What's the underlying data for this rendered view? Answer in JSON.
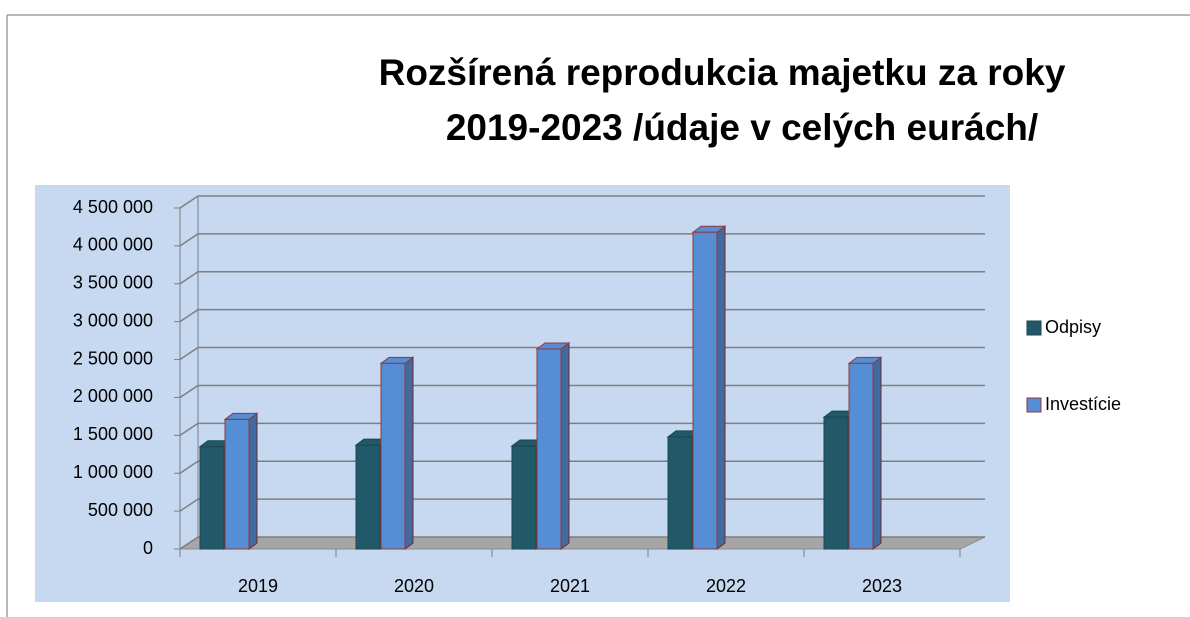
{
  "chart_data": {
    "type": "bar3d",
    "title": "Rozšírená reprodukcia  majetku za roky",
    "subtitle": "2019-2023 /údaje v celých eurách/",
    "categories": [
      "2019",
      "2020",
      "2021",
      "2022",
      "2023"
    ],
    "series": [
      {
        "name": "Odpisy",
        "color": "#215968",
        "values": [
          1350000,
          1370000,
          1360000,
          1480000,
          1740000
        ]
      },
      {
        "name": "Investície",
        "color": "#558ed5",
        "values": [
          1710000,
          2450000,
          2640000,
          4180000,
          2450000
        ]
      }
    ],
    "ylim": [
      0,
      4500000
    ],
    "yticks": [
      0,
      {
        "value": 500000,
        "label": "500 000"
      },
      {
        "value": 1000000,
        "label": "1 000 000"
      },
      {
        "value": 1500000,
        "label": "1 500 000"
      },
      {
        "value": 2000000,
        "label": "2 000 000"
      },
      {
        "value": 2500000,
        "label": "2 500 000"
      },
      {
        "value": 3000000,
        "label": "3 000 000"
      },
      {
        "value": 3500000,
        "label": "3 500 000"
      },
      {
        "value": 4000000,
        "label": "4 000 000"
      },
      {
        "value": 4500000,
        "label": "4 500 000"
      }
    ],
    "grid": true,
    "legend": "right"
  }
}
